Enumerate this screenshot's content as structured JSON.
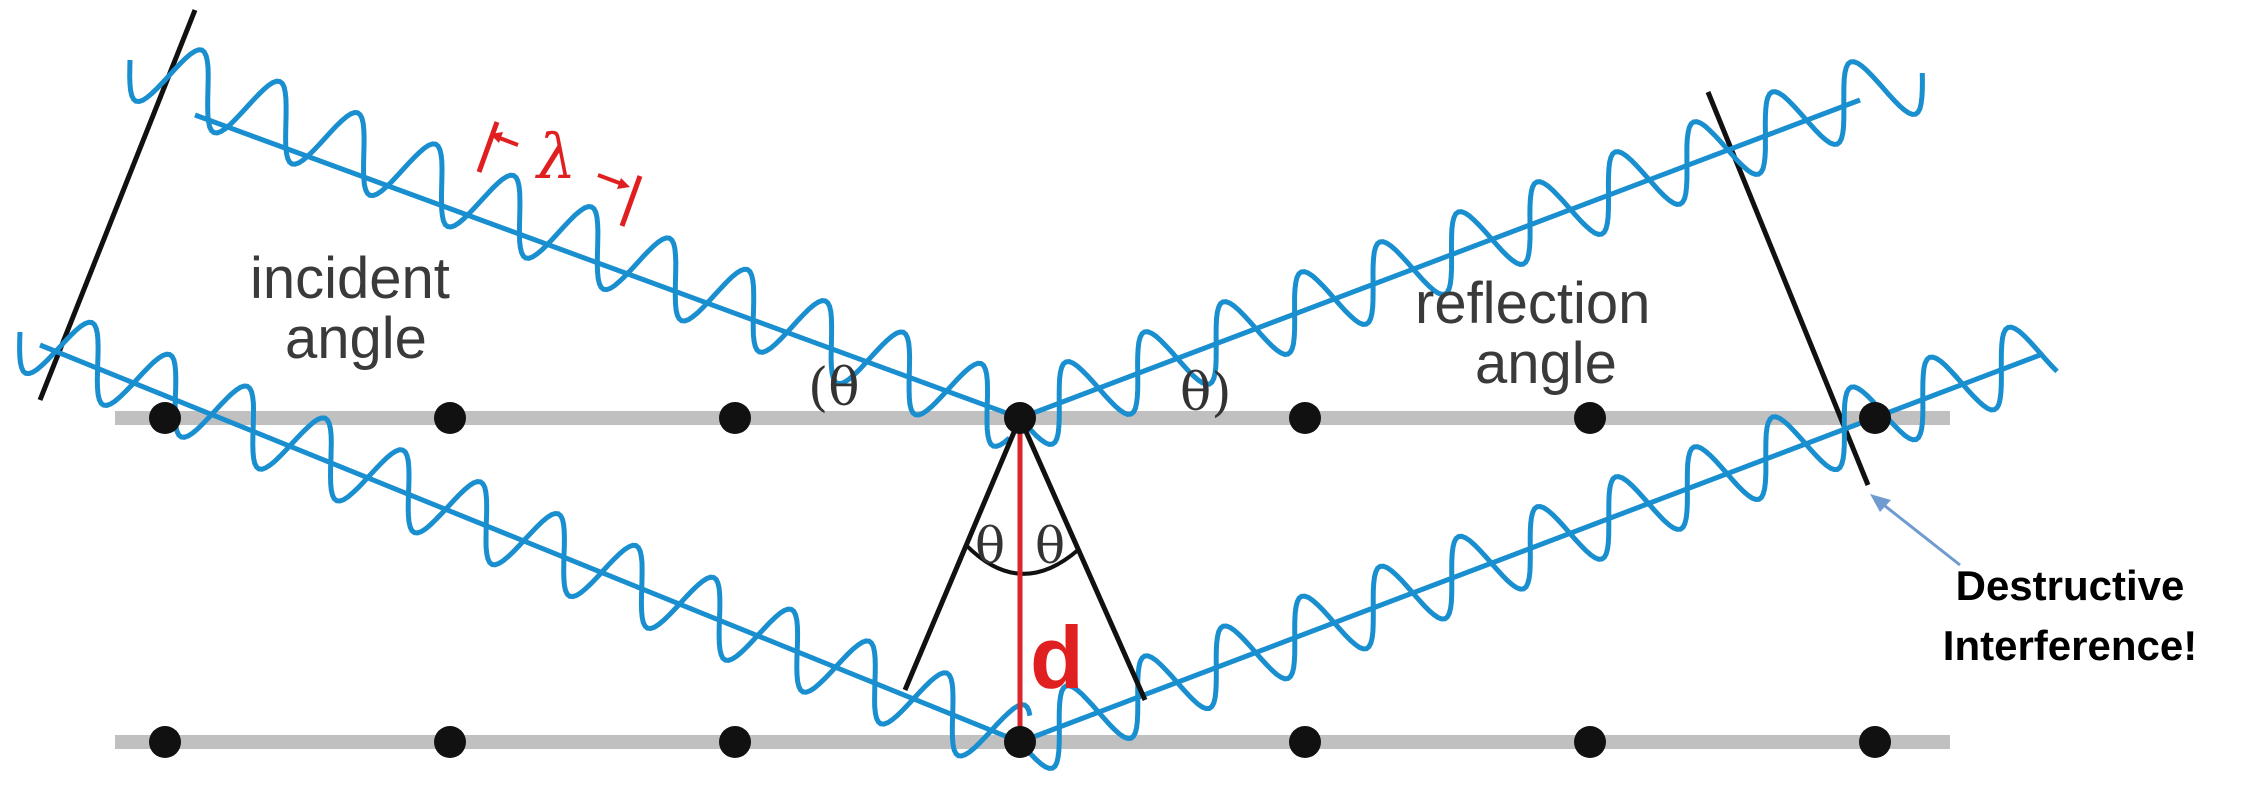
{
  "labels": {
    "incident_line1": "incident",
    "incident_line2": "angle",
    "reflection_line1": "reflection",
    "reflection_line2": "angle",
    "theta_left": "(θ",
    "theta_right": "θ)",
    "theta_apex_left": "θ",
    "theta_apex_right": "θ",
    "lambda": "λ",
    "d": "d",
    "annotation_line1": "Destructive",
    "annotation_line2": "Interference!"
  },
  "colors": {
    "wave": "#1a8fd0",
    "plane": "#c0c0c0",
    "atom": "#111111",
    "spacing": "#d8262a",
    "annotation_arrow": "#6f9bd0"
  },
  "icons": {
    "arrow": "arrow-up-left-icon"
  }
}
